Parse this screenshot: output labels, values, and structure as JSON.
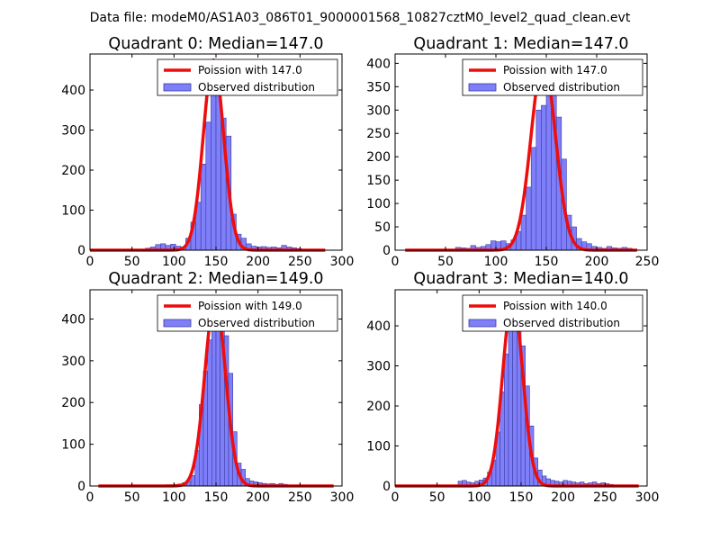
{
  "figure": {
    "suptitle": "Data file: modeM0/AS1A03_086T01_9000001568_10827cztM0_level2_quad_clean.evt"
  },
  "colors": {
    "bar_fill": "#7f7ffa",
    "bar_edge": "#3a3aa0",
    "poisson_line": "#ee0d0d",
    "axes": "#000000",
    "background": "#ffffff"
  },
  "chart_data": [
    {
      "type": "bar",
      "title": "Quadrant 0: Median=147.0",
      "legend": [
        "Poission with 147.0",
        "Observed distribution"
      ],
      "legend_loc": "upper-right",
      "xlim": [
        0,
        300
      ],
      "ylim": [
        0,
        490
      ],
      "xticks": [
        0,
        50,
        100,
        150,
        200,
        250,
        300
      ],
      "yticks": [
        0,
        100,
        200,
        300,
        400
      ],
      "poisson_mean": 147.0,
      "poisson_peak": 475,
      "poisson_sigma": 12.1,
      "poisson_xrange": [
        0,
        280
      ],
      "bin_width": 6,
      "bins": [
        [
          60,
          2
        ],
        [
          66,
          5
        ],
        [
          72,
          8
        ],
        [
          78,
          14
        ],
        [
          84,
          16
        ],
        [
          90,
          12
        ],
        [
          96,
          15
        ],
        [
          102,
          10
        ],
        [
          108,
          8
        ],
        [
          114,
          30
        ],
        [
          120,
          70
        ],
        [
          126,
          120
        ],
        [
          132,
          215
        ],
        [
          138,
          320
        ],
        [
          144,
          420
        ],
        [
          150,
          435
        ],
        [
          156,
          330
        ],
        [
          162,
          285
        ],
        [
          168,
          90
        ],
        [
          174,
          40
        ],
        [
          180,
          30
        ],
        [
          186,
          16
        ],
        [
          192,
          10
        ],
        [
          198,
          8
        ],
        [
          204,
          9
        ],
        [
          210,
          7
        ],
        [
          216,
          8
        ],
        [
          222,
          6
        ],
        [
          228,
          12
        ],
        [
          234,
          8
        ],
        [
          240,
          6
        ],
        [
          246,
          4
        ]
      ]
    },
    {
      "type": "bar",
      "title": "Quadrant 1: Median=147.0",
      "legend": [
        "Poission with 147.0",
        "Observed distribution"
      ],
      "legend_loc": "upper-right",
      "xlim": [
        0,
        250
      ],
      "ylim": [
        0,
        420
      ],
      "xticks": [
        0,
        50,
        100,
        150,
        200,
        250
      ],
      "yticks": [
        0,
        50,
        100,
        150,
        200,
        250,
        300,
        350,
        400
      ],
      "poisson_mean": 147.0,
      "poisson_peak": 405,
      "poisson_sigma": 12.1,
      "poisson_xrange": [
        10,
        240
      ],
      "bin_width": 5,
      "bins": [
        [
          60,
          6
        ],
        [
          65,
          5
        ],
        [
          70,
          4
        ],
        [
          75,
          10
        ],
        [
          80,
          6
        ],
        [
          85,
          8
        ],
        [
          90,
          12
        ],
        [
          95,
          20
        ],
        [
          100,
          18
        ],
        [
          105,
          20
        ],
        [
          110,
          14
        ],
        [
          115,
          22
        ],
        [
          120,
          40
        ],
        [
          125,
          75
        ],
        [
          130,
          135
        ],
        [
          135,
          220
        ],
        [
          140,
          300
        ],
        [
          145,
          310
        ],
        [
          150,
          400
        ],
        [
          155,
          340
        ],
        [
          160,
          285
        ],
        [
          165,
          195
        ],
        [
          170,
          75
        ],
        [
          175,
          50
        ],
        [
          180,
          25
        ],
        [
          185,
          18
        ],
        [
          190,
          14
        ],
        [
          195,
          8
        ],
        [
          200,
          6
        ],
        [
          205,
          4
        ],
        [
          210,
          8
        ],
        [
          215,
          5
        ],
        [
          220,
          4
        ],
        [
          225,
          6
        ],
        [
          230,
          4
        ],
        [
          235,
          2
        ]
      ]
    },
    {
      "type": "bar",
      "title": "Quadrant 2: Median=149.0",
      "legend": [
        "Poission with 149.0",
        "Observed distribution"
      ],
      "legend_loc": "upper-right",
      "xlim": [
        0,
        300
      ],
      "ylim": [
        0,
        470
      ],
      "xticks": [
        0,
        50,
        100,
        150,
        200,
        250,
        300
      ],
      "yticks": [
        0,
        100,
        200,
        300,
        400
      ],
      "poisson_mean": 149.0,
      "poisson_peak": 450,
      "poisson_sigma": 12.2,
      "poisson_xrange": [
        10,
        290
      ],
      "bin_width": 5,
      "bins": [
        [
          85,
          2
        ],
        [
          90,
          3
        ],
        [
          95,
          3
        ],
        [
          100,
          4
        ],
        [
          105,
          5
        ],
        [
          110,
          8
        ],
        [
          115,
          12
        ],
        [
          120,
          25
        ],
        [
          125,
          85
        ],
        [
          130,
          195
        ],
        [
          135,
          275
        ],
        [
          140,
          350
        ],
        [
          145,
          420
        ],
        [
          150,
          445
        ],
        [
          155,
          395
        ],
        [
          160,
          360
        ],
        [
          165,
          270
        ],
        [
          170,
          130
        ],
        [
          175,
          55
        ],
        [
          180,
          40
        ],
        [
          185,
          18
        ],
        [
          190,
          12
        ],
        [
          195,
          10
        ],
        [
          200,
          8
        ],
        [
          205,
          6
        ],
        [
          210,
          5
        ],
        [
          215,
          6
        ],
        [
          220,
          4
        ],
        [
          225,
          6
        ],
        [
          230,
          4
        ]
      ]
    },
    {
      "type": "bar",
      "title": "Quadrant 3: Median=140.0",
      "legend": [
        "Poission with 140.0",
        "Observed distribution"
      ],
      "legend_loc": "upper-right",
      "xlim": [
        0,
        300
      ],
      "ylim": [
        0,
        490
      ],
      "xticks": [
        0,
        50,
        100,
        150,
        200,
        250,
        300
      ],
      "yticks": [
        0,
        100,
        200,
        300,
        400
      ],
      "poisson_mean": 140.0,
      "poisson_peak": 470,
      "poisson_sigma": 11.8,
      "poisson_xrange": [
        0,
        290
      ],
      "bin_width": 5,
      "bins": [
        [
          75,
          12
        ],
        [
          80,
          14
        ],
        [
          85,
          10
        ],
        [
          90,
          8
        ],
        [
          95,
          12
        ],
        [
          100,
          15
        ],
        [
          105,
          20
        ],
        [
          110,
          35
        ],
        [
          115,
          65
        ],
        [
          120,
          135
        ],
        [
          125,
          235
        ],
        [
          130,
          330
        ],
        [
          135,
          420
        ],
        [
          140,
          460
        ],
        [
          145,
          405
        ],
        [
          150,
          350
        ],
        [
          155,
          250
        ],
        [
          160,
          150
        ],
        [
          165,
          70
        ],
        [
          170,
          40
        ],
        [
          175,
          25
        ],
        [
          180,
          18
        ],
        [
          185,
          14
        ],
        [
          190,
          12
        ],
        [
          195,
          10
        ],
        [
          200,
          14
        ],
        [
          205,
          12
        ],
        [
          210,
          10
        ],
        [
          215,
          8
        ],
        [
          220,
          10
        ],
        [
          225,
          6
        ],
        [
          230,
          8
        ],
        [
          235,
          10
        ],
        [
          240,
          6
        ],
        [
          245,
          8
        ],
        [
          250,
          6
        ],
        [
          255,
          4
        ]
      ]
    }
  ]
}
